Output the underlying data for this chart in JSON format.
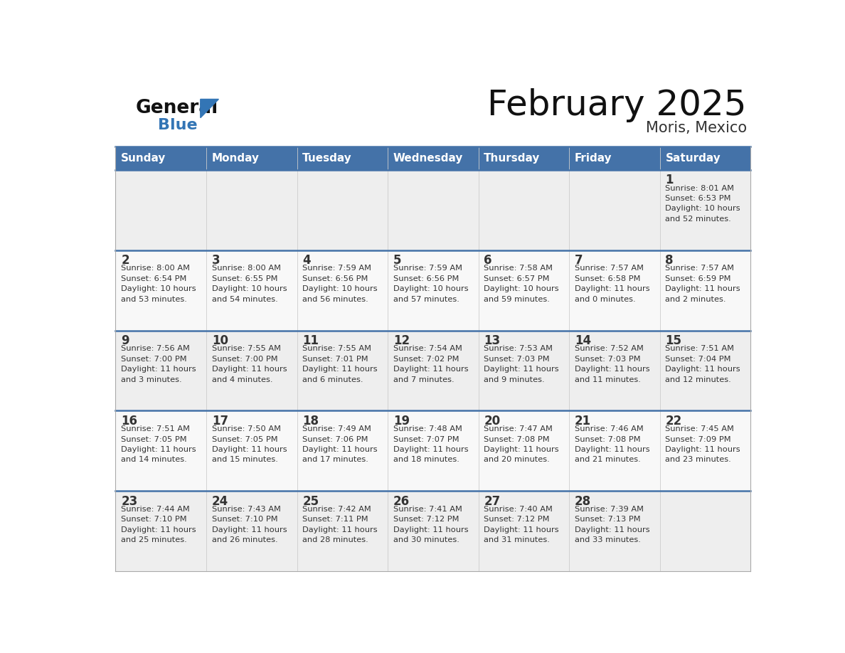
{
  "title": "February 2025",
  "subtitle": "Moris, Mexico",
  "header_bg_color": "#4472a8",
  "header_text_color": "#ffffff",
  "cell_bg_color_odd": "#eeeeee",
  "cell_bg_color_even": "#f8f8f8",
  "separator_color": "#4472a8",
  "separator_color_light": "#4472a8",
  "day_number_color": "#333333",
  "info_text_color": "#333333",
  "days_of_week": [
    "Sunday",
    "Monday",
    "Tuesday",
    "Wednesday",
    "Thursday",
    "Friday",
    "Saturday"
  ],
  "calendar_data": [
    [
      null,
      null,
      null,
      null,
      null,
      null,
      {
        "day": "1",
        "sunrise": "8:01 AM",
        "sunset": "6:53 PM",
        "dl1": "Daylight: 10 hours",
        "dl2": "and 52 minutes."
      }
    ],
    [
      {
        "day": "2",
        "sunrise": "8:00 AM",
        "sunset": "6:54 PM",
        "dl1": "Daylight: 10 hours",
        "dl2": "and 53 minutes."
      },
      {
        "day": "3",
        "sunrise": "8:00 AM",
        "sunset": "6:55 PM",
        "dl1": "Daylight: 10 hours",
        "dl2": "and 54 minutes."
      },
      {
        "day": "4",
        "sunrise": "7:59 AM",
        "sunset": "6:56 PM",
        "dl1": "Daylight: 10 hours",
        "dl2": "and 56 minutes."
      },
      {
        "day": "5",
        "sunrise": "7:59 AM",
        "sunset": "6:56 PM",
        "dl1": "Daylight: 10 hours",
        "dl2": "and 57 minutes."
      },
      {
        "day": "6",
        "sunrise": "7:58 AM",
        "sunset": "6:57 PM",
        "dl1": "Daylight: 10 hours",
        "dl2": "and 59 minutes."
      },
      {
        "day": "7",
        "sunrise": "7:57 AM",
        "sunset": "6:58 PM",
        "dl1": "Daylight: 11 hours",
        "dl2": "and 0 minutes."
      },
      {
        "day": "8",
        "sunrise": "7:57 AM",
        "sunset": "6:59 PM",
        "dl1": "Daylight: 11 hours",
        "dl2": "and 2 minutes."
      }
    ],
    [
      {
        "day": "9",
        "sunrise": "7:56 AM",
        "sunset": "7:00 PM",
        "dl1": "Daylight: 11 hours",
        "dl2": "and 3 minutes."
      },
      {
        "day": "10",
        "sunrise": "7:55 AM",
        "sunset": "7:00 PM",
        "dl1": "Daylight: 11 hours",
        "dl2": "and 4 minutes."
      },
      {
        "day": "11",
        "sunrise": "7:55 AM",
        "sunset": "7:01 PM",
        "dl1": "Daylight: 11 hours",
        "dl2": "and 6 minutes."
      },
      {
        "day": "12",
        "sunrise": "7:54 AM",
        "sunset": "7:02 PM",
        "dl1": "Daylight: 11 hours",
        "dl2": "and 7 minutes."
      },
      {
        "day": "13",
        "sunrise": "7:53 AM",
        "sunset": "7:03 PM",
        "dl1": "Daylight: 11 hours",
        "dl2": "and 9 minutes."
      },
      {
        "day": "14",
        "sunrise": "7:52 AM",
        "sunset": "7:03 PM",
        "dl1": "Daylight: 11 hours",
        "dl2": "and 11 minutes."
      },
      {
        "day": "15",
        "sunrise": "7:51 AM",
        "sunset": "7:04 PM",
        "dl1": "Daylight: 11 hours",
        "dl2": "and 12 minutes."
      }
    ],
    [
      {
        "day": "16",
        "sunrise": "7:51 AM",
        "sunset": "7:05 PM",
        "dl1": "Daylight: 11 hours",
        "dl2": "and 14 minutes."
      },
      {
        "day": "17",
        "sunrise": "7:50 AM",
        "sunset": "7:05 PM",
        "dl1": "Daylight: 11 hours",
        "dl2": "and 15 minutes."
      },
      {
        "day": "18",
        "sunrise": "7:49 AM",
        "sunset": "7:06 PM",
        "dl1": "Daylight: 11 hours",
        "dl2": "and 17 minutes."
      },
      {
        "day": "19",
        "sunrise": "7:48 AM",
        "sunset": "7:07 PM",
        "dl1": "Daylight: 11 hours",
        "dl2": "and 18 minutes."
      },
      {
        "day": "20",
        "sunrise": "7:47 AM",
        "sunset": "7:08 PM",
        "dl1": "Daylight: 11 hours",
        "dl2": "and 20 minutes."
      },
      {
        "day": "21",
        "sunrise": "7:46 AM",
        "sunset": "7:08 PM",
        "dl1": "Daylight: 11 hours",
        "dl2": "and 21 minutes."
      },
      {
        "day": "22",
        "sunrise": "7:45 AM",
        "sunset": "7:09 PM",
        "dl1": "Daylight: 11 hours",
        "dl2": "and 23 minutes."
      }
    ],
    [
      {
        "day": "23",
        "sunrise": "7:44 AM",
        "sunset": "7:10 PM",
        "dl1": "Daylight: 11 hours",
        "dl2": "and 25 minutes."
      },
      {
        "day": "24",
        "sunrise": "7:43 AM",
        "sunset": "7:10 PM",
        "dl1": "Daylight: 11 hours",
        "dl2": "and 26 minutes."
      },
      {
        "day": "25",
        "sunrise": "7:42 AM",
        "sunset": "7:11 PM",
        "dl1": "Daylight: 11 hours",
        "dl2": "and 28 minutes."
      },
      {
        "day": "26",
        "sunrise": "7:41 AM",
        "sunset": "7:12 PM",
        "dl1": "Daylight: 11 hours",
        "dl2": "and 30 minutes."
      },
      {
        "day": "27",
        "sunrise": "7:40 AM",
        "sunset": "7:12 PM",
        "dl1": "Daylight: 11 hours",
        "dl2": "and 31 minutes."
      },
      {
        "day": "28",
        "sunrise": "7:39 AM",
        "sunset": "7:13 PM",
        "dl1": "Daylight: 11 hours",
        "dl2": "and 33 minutes."
      },
      null
    ]
  ]
}
